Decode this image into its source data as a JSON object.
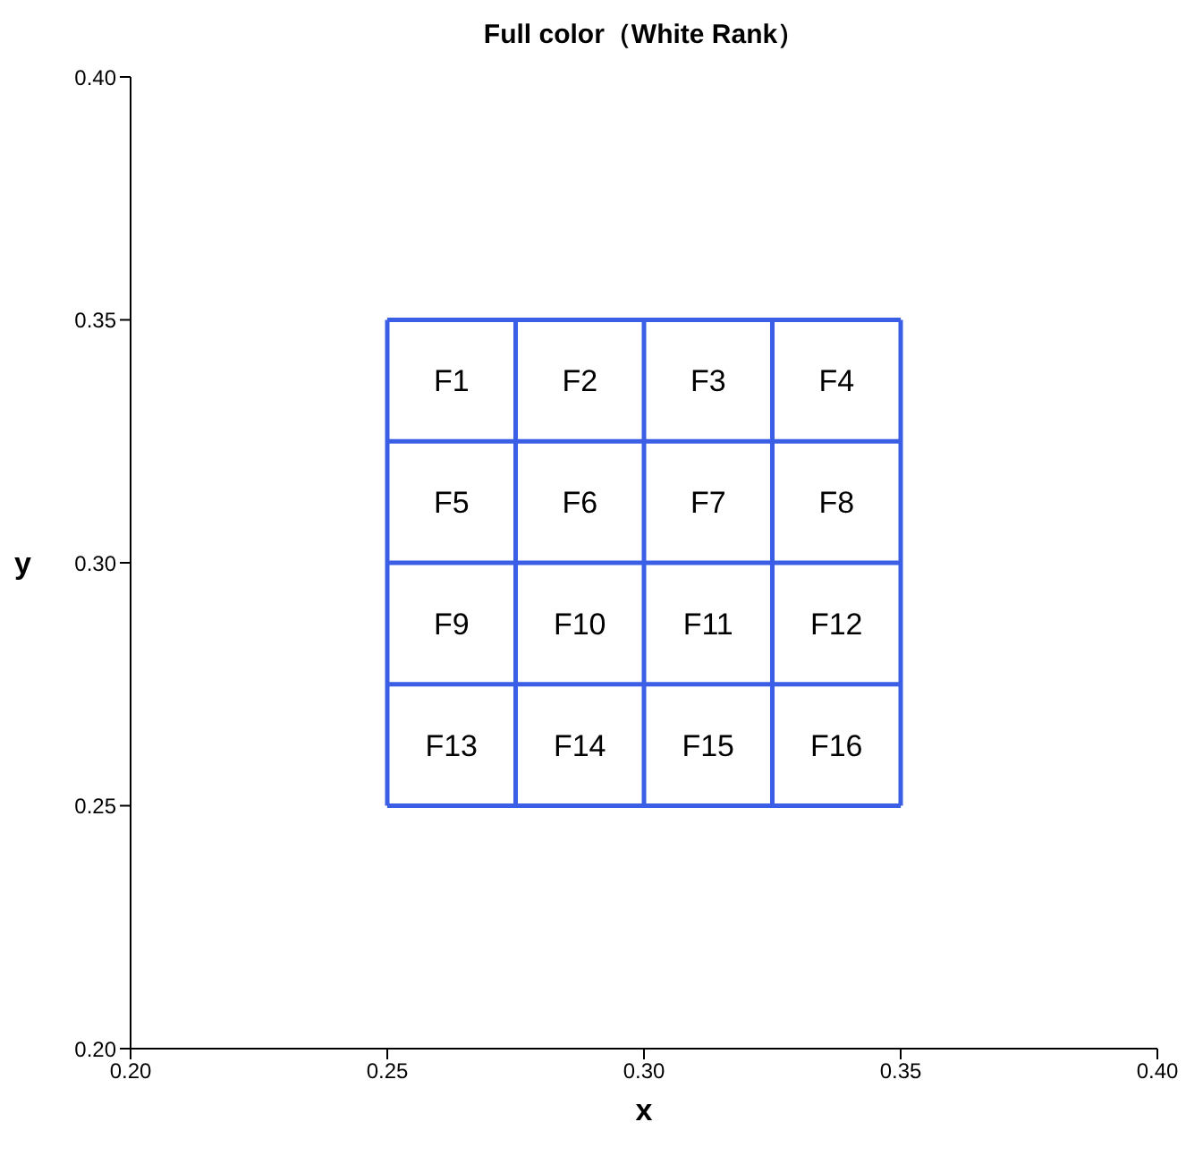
{
  "chart_data": {
    "type": "line",
    "title": "Full  color（White Rank）",
    "xlabel": "x",
    "ylabel": "y",
    "xlim": [
      0.2,
      0.4
    ],
    "ylim": [
      0.2,
      0.4
    ],
    "xticks": [
      {
        "value": 0.2,
        "label": "0.20"
      },
      {
        "value": 0.25,
        "label": "0.25"
      },
      {
        "value": 0.3,
        "label": "0.30"
      },
      {
        "value": 0.35,
        "label": "0.35"
      },
      {
        "value": 0.4,
        "label": "0.40"
      }
    ],
    "yticks": [
      {
        "value": 0.2,
        "label": "0.20"
      },
      {
        "value": 0.25,
        "label": "0.25"
      },
      {
        "value": 0.3,
        "label": "0.30"
      },
      {
        "value": 0.35,
        "label": "0.35"
      },
      {
        "value": 0.4,
        "label": "0.40"
      }
    ],
    "grid": false,
    "marker": "none",
    "line_style": "solid",
    "series": [
      {
        "color": "#3b5ee6",
        "x": [
          0.25,
          0.25
        ],
        "values": [
          0.25,
          0.35
        ]
      },
      {
        "color": "#3b5ee6",
        "x": [
          0.275,
          0.275
        ],
        "values": [
          0.25,
          0.35
        ]
      },
      {
        "color": "#3b5ee6",
        "x": [
          0.3,
          0.3
        ],
        "values": [
          0.25,
          0.35
        ]
      },
      {
        "color": "#3b5ee6",
        "x": [
          0.325,
          0.325
        ],
        "values": [
          0.25,
          0.35
        ]
      },
      {
        "color": "#3b5ee6",
        "x": [
          0.35,
          0.35
        ],
        "values": [
          0.25,
          0.35
        ]
      },
      {
        "color": "#3b5ee6",
        "x": [
          0.25,
          0.35
        ],
        "values": [
          0.25,
          0.25
        ]
      },
      {
        "color": "#3b5ee6",
        "x": [
          0.25,
          0.35
        ],
        "values": [
          0.275,
          0.275
        ]
      },
      {
        "color": "#3b5ee6",
        "x": [
          0.25,
          0.35
        ],
        "values": [
          0.3,
          0.3
        ]
      },
      {
        "color": "#3b5ee6",
        "x": [
          0.25,
          0.35
        ],
        "values": [
          0.325,
          0.325
        ]
      },
      {
        "color": "#3b5ee6",
        "x": [
          0.25,
          0.35
        ],
        "values": [
          0.35,
          0.35
        ]
      }
    ],
    "annotations": [
      "F1",
      "F2",
      "F3",
      "F4",
      "F5",
      "F6",
      "F7",
      "F8",
      "F9",
      "F10",
      "F11",
      "F12",
      "F13",
      "F14",
      "F15",
      "F16"
    ]
  }
}
